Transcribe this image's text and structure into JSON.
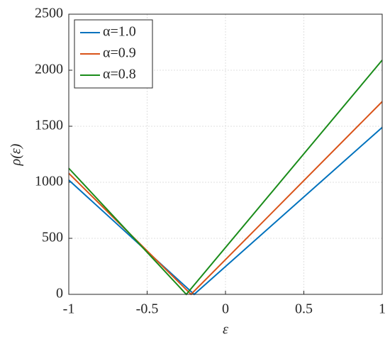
{
  "chart_data": {
    "type": "line",
    "x_label": "ε",
    "y_label": "ρ(ε)",
    "series": [
      {
        "name": "α=1.0",
        "color": "#0072bd",
        "x": [
          -1,
          -0.2,
          1
        ],
        "values": [
          1020,
          0,
          1490
        ]
      },
      {
        "name": "α=0.9",
        "color": "#d95319",
        "x": [
          -1,
          -0.22,
          1
        ],
        "values": [
          1080,
          0,
          1720
        ]
      },
      {
        "name": "α=0.8",
        "color": "#1a8c1a",
        "x": [
          -1,
          -0.25,
          1
        ],
        "values": [
          1125,
          0,
          2090
        ]
      }
    ],
    "xlim": [
      -1,
      1
    ],
    "xticks": [
      -1,
      -0.5,
      0,
      0.5,
      1
    ],
    "ylim": [
      0,
      2500
    ],
    "yticks": [
      0,
      500,
      1000,
      1500,
      2000,
      2500
    ],
    "grid": true,
    "legend": "upper left"
  }
}
